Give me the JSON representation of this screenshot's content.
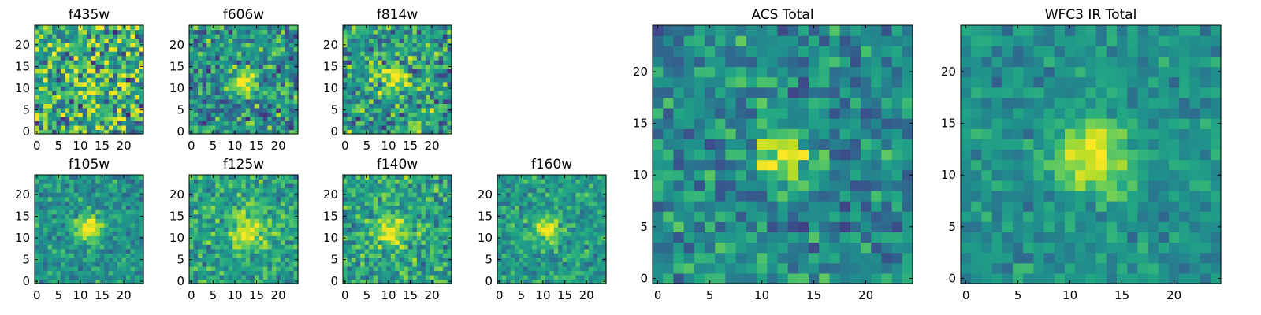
{
  "chart_data": [
    {
      "type": "heatmap",
      "title": "f435w",
      "colormap": "viridis",
      "grid": false,
      "xlim": [
        -0.5,
        24.5
      ],
      "ylim": [
        -0.5,
        24.5
      ],
      "xticks": [
        "0",
        "5",
        "10",
        "15",
        "20"
      ],
      "yticks": [
        "0",
        "5",
        "10",
        "15",
        "20"
      ],
      "source_peak": {
        "x": 11,
        "y": 11
      },
      "peak_strength": 0.25,
      "noise_level": 0.55,
      "blob_width": 2.0,
      "base_level": 0.62
    },
    {
      "type": "heatmap",
      "title": "f606w",
      "colormap": "viridis",
      "grid": false,
      "xlim": [
        -0.5,
        24.5
      ],
      "ylim": [
        -0.5,
        24.5
      ],
      "xticks": [
        "0",
        "5",
        "10",
        "15",
        "20"
      ],
      "yticks": [
        "0",
        "5",
        "10",
        "15",
        "20"
      ],
      "source_peak": {
        "x": 12,
        "y": 12
      },
      "peak_strength": 0.55,
      "noise_level": 0.4,
      "blob_width": 1.8,
      "base_level": 0.5
    },
    {
      "type": "heatmap",
      "title": "f814w",
      "colormap": "viridis",
      "grid": false,
      "xlim": [
        -0.5,
        24.5
      ],
      "ylim": [
        -0.5,
        24.5
      ],
      "xticks": [
        "0",
        "5",
        "10",
        "15",
        "20"
      ],
      "yticks": [
        "0",
        "5",
        "10",
        "15",
        "20"
      ],
      "source_peak": {
        "x": 11,
        "y": 12
      },
      "peak_strength": 0.45,
      "noise_level": 0.45,
      "blob_width": 1.8,
      "base_level": 0.56
    },
    {
      "type": "heatmap",
      "title": "f105w",
      "colormap": "viridis",
      "grid": false,
      "xlim": [
        -0.5,
        24.5
      ],
      "ylim": [
        -0.5,
        24.5
      ],
      "xticks": [
        "0",
        "5",
        "10",
        "15",
        "20"
      ],
      "yticks": [
        "0",
        "5",
        "10",
        "15",
        "20"
      ],
      "source_peak": {
        "x": 12,
        "y": 12
      },
      "peak_strength": 0.5,
      "noise_level": 0.25,
      "blob_width": 2.2,
      "base_level": 0.52
    },
    {
      "type": "heatmap",
      "title": "f125w",
      "colormap": "viridis",
      "grid": false,
      "xlim": [
        -0.5,
        24.5
      ],
      "ylim": [
        -0.5,
        24.5
      ],
      "xticks": [
        "0",
        "5",
        "10",
        "15",
        "20"
      ],
      "yticks": [
        "0",
        "5",
        "10",
        "15",
        "20"
      ],
      "source_peak": {
        "x": 13,
        "y": 12
      },
      "peak_strength": 0.4,
      "noise_level": 0.3,
      "blob_width": 3.0,
      "base_level": 0.58
    },
    {
      "type": "heatmap",
      "title": "f140w",
      "colormap": "viridis",
      "grid": false,
      "xlim": [
        -0.5,
        24.5
      ],
      "ylim": [
        -0.5,
        24.5
      ],
      "xticks": [
        "0",
        "5",
        "10",
        "15",
        "20"
      ],
      "yticks": [
        "0",
        "5",
        "10",
        "15",
        "20"
      ],
      "source_peak": {
        "x": 11,
        "y": 12
      },
      "peak_strength": 0.45,
      "noise_level": 0.32,
      "blob_width": 2.5,
      "base_level": 0.58
    },
    {
      "type": "heatmap",
      "title": "f160w",
      "colormap": "viridis",
      "grid": false,
      "xlim": [
        -0.5,
        24.5
      ],
      "ylim": [
        -0.5,
        24.5
      ],
      "xticks": [
        "0",
        "5",
        "10",
        "15",
        "20"
      ],
      "yticks": [
        "0",
        "5",
        "10",
        "15",
        "20"
      ],
      "source_peak": {
        "x": 11,
        "y": 12
      },
      "peak_strength": 0.5,
      "noise_level": 0.25,
      "blob_width": 1.8,
      "base_level": 0.55
    },
    {
      "type": "heatmap",
      "title": "ACS Total",
      "colormap": "viridis",
      "grid": false,
      "xlim": [
        -0.5,
        24.5
      ],
      "ylim": [
        -0.5,
        24.5
      ],
      "xticks": [
        "0",
        "5",
        "10",
        "15",
        "20"
      ],
      "yticks": [
        "0",
        "5",
        "10",
        "15",
        "20"
      ],
      "source_peak": {
        "x": 12,
        "y": 12
      },
      "peak_strength": 0.55,
      "noise_level": 0.3,
      "blob_width": 1.6,
      "base_level": 0.48
    },
    {
      "type": "heatmap",
      "title": "WFC3 IR Total",
      "colormap": "viridis",
      "grid": false,
      "xlim": [
        -0.5,
        24.5
      ],
      "ylim": [
        -0.5,
        24.5
      ],
      "xticks": [
        "0",
        "5",
        "10",
        "15",
        "20"
      ],
      "yticks": [
        "0",
        "5",
        "10",
        "15",
        "20"
      ],
      "source_peak": {
        "x": 12,
        "y": 12
      },
      "peak_strength": 0.5,
      "noise_level": 0.2,
      "blob_width": 2.6,
      "base_level": 0.5
    }
  ]
}
